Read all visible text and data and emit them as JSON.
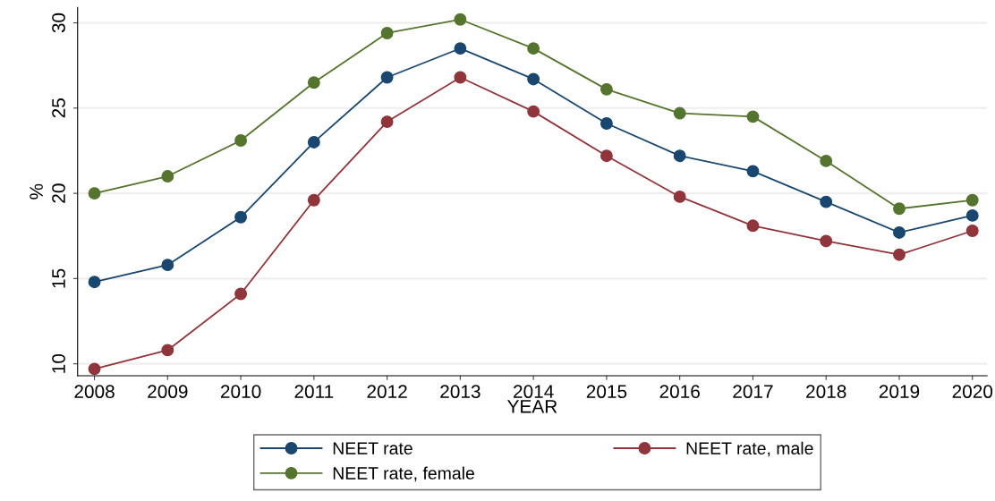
{
  "chart_data": {
    "type": "line",
    "xlabel": "YEAR",
    "ylabel": "%",
    "x": [
      2008,
      2009,
      2010,
      2011,
      2012,
      2013,
      2014,
      2015,
      2016,
      2017,
      2018,
      2019,
      2020
    ],
    "series": [
      {
        "name": "NEET rate",
        "color": "#1a476f",
        "values": [
          14.8,
          15.8,
          18.6,
          23.0,
          26.8,
          28.5,
          26.7,
          24.1,
          22.2,
          21.3,
          19.5,
          17.7,
          18.7
        ]
      },
      {
        "name": "NEET rate, male",
        "color": "#90353b",
        "values": [
          9.7,
          10.8,
          14.1,
          19.6,
          24.2,
          26.8,
          24.8,
          22.2,
          19.8,
          18.1,
          17.2,
          16.4,
          17.8
        ]
      },
      {
        "name": "NEET rate, female",
        "color": "#55752f",
        "values": [
          20.0,
          21.0,
          23.1,
          26.5,
          29.4,
          30.2,
          28.5,
          26.1,
          24.7,
          24.5,
          21.9,
          19.1,
          19.6
        ]
      }
    ],
    "xlim": [
      2007.77,
      2020.2
    ],
    "xticks": [
      2008,
      2009,
      2010,
      2011,
      2012,
      2013,
      2014,
      2015,
      2016,
      2017,
      2018,
      2019,
      2020
    ],
    "ylim": [
      9.3,
      30.9
    ],
    "yticks": [
      10,
      15,
      20,
      25,
      30
    ],
    "grid": "y",
    "legend": "bottom",
    "marker": "circle",
    "line_style": "solid"
  }
}
